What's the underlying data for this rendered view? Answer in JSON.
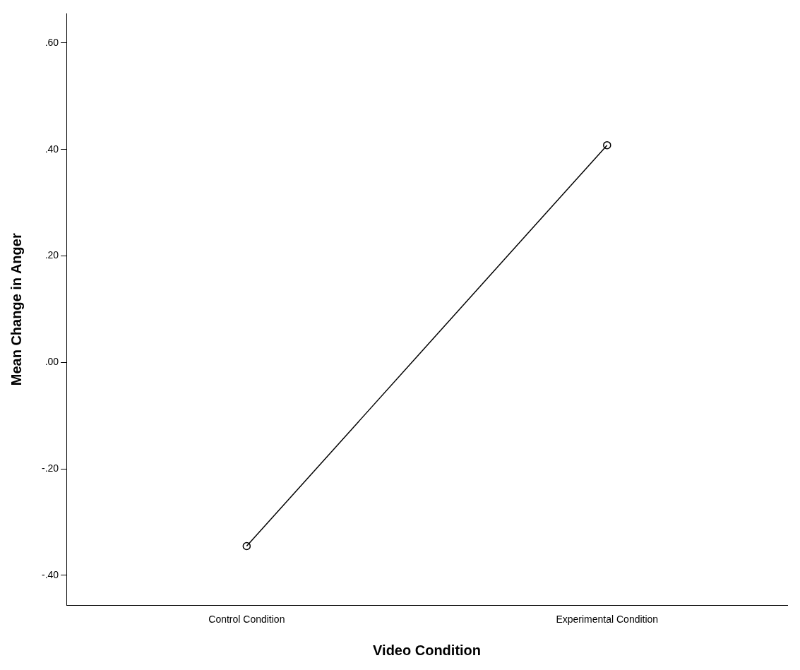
{
  "chart_data": {
    "type": "line",
    "xlabel": "Video Condition",
    "ylabel": "Mean Change in Anger",
    "categories": [
      "Control Condition",
      "Experimental Condition"
    ],
    "series": [
      {
        "color": "#000000",
        "values": [
          -0.345,
          0.408
        ]
      }
    ],
    "ylim": [
      -0.456,
      0.655
    ],
    "yticks": [
      {
        "value": -0.4,
        "label": "-.40"
      },
      {
        "value": -0.2,
        "label": "-.20"
      },
      {
        "value": 0,
        "label": ".00"
      },
      {
        "value": 0.2,
        "label": ".20"
      },
      {
        "value": 0.4,
        "label": ".40"
      },
      {
        "value": 0.6,
        "label": ".60"
      }
    ],
    "grid": false,
    "legend": false,
    "marker": "circle",
    "line_style": "solid"
  }
}
